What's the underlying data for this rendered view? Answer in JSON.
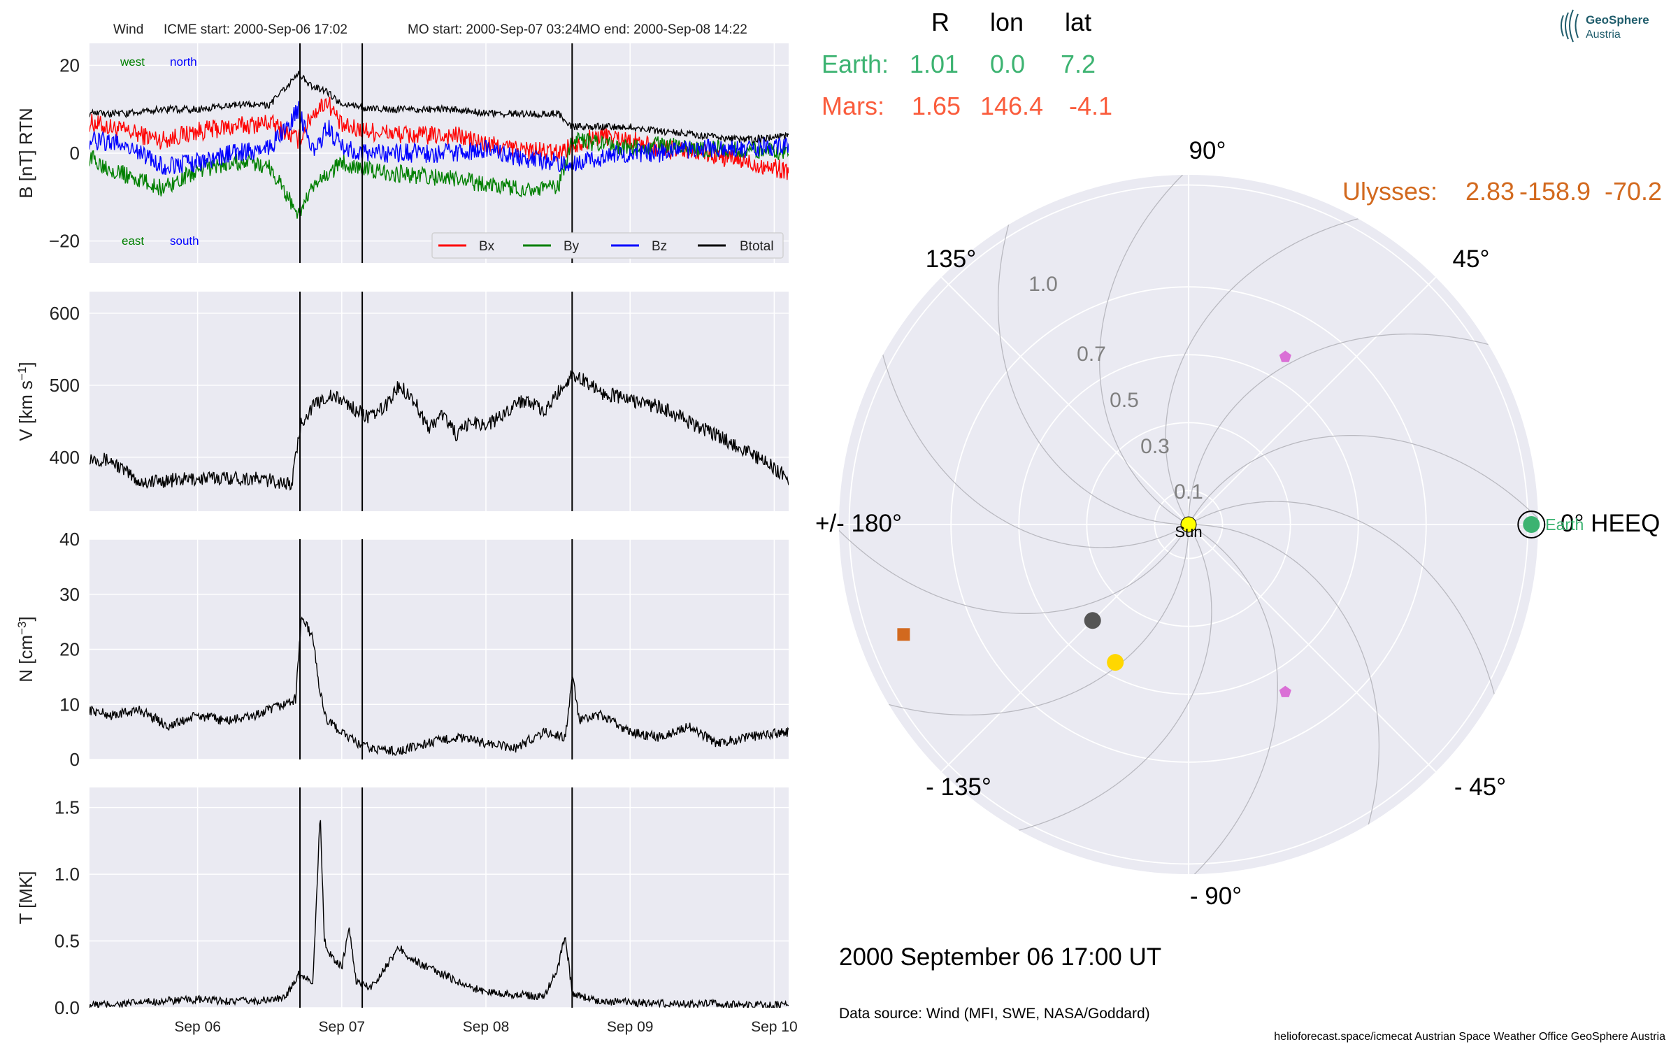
{
  "header": {
    "spacecraft": "Wind",
    "icme_start": "ICME start: 2000-Sep-06 17:02",
    "mo_start": "MO start: 2000-Sep-07 03:24",
    "mo_end": "MO end: 2000-Sep-08 14:22"
  },
  "colors": {
    "panel_bg": "#eaeaf2",
    "grid": "#ffffff",
    "bx": "#ff0000",
    "by": "#008000",
    "bz": "#0000ff",
    "btotal": "#000000",
    "earth": "#3cb371",
    "mars": "#fa5c3c",
    "ulysses": "#d2691e",
    "sun": "#ffff00",
    "pink": "#da70d6",
    "gold": "#ffd700",
    "gray_dot": "#555555"
  },
  "labels": {
    "west": "west",
    "north": "north",
    "east": "east",
    "south": "south"
  },
  "chart_data": [
    {
      "type": "line",
      "panel": "magnetic-field",
      "ylabel": "B [nT] RTN",
      "ylim": [
        -25,
        25
      ],
      "yticks": [
        -20,
        0,
        20
      ],
      "xlim_days": [
        5.25,
        10.1
      ],
      "legend": {
        "placement": "lower-right",
        "entries": [
          "Bx",
          "By",
          "Bz",
          "Btotal"
        ]
      },
      "series": [
        {
          "name": "Bx",
          "color": "#ff0000",
          "x": [
            5.25,
            5.5,
            5.75,
            6.0,
            6.25,
            6.5,
            6.7,
            6.8,
            6.9,
            7.0,
            7.2,
            7.5,
            7.8,
            8.0,
            8.2,
            8.5,
            8.6,
            8.8,
            9.0,
            9.2,
            9.5,
            9.8,
            10.1
          ],
          "y": [
            7,
            5,
            3,
            5,
            6,
            7,
            3,
            9,
            12,
            6,
            5,
            4,
            4,
            2,
            1,
            0,
            2,
            4,
            3,
            1,
            0,
            -2,
            -4
          ]
        },
        {
          "name": "By",
          "color": "#008000",
          "x": [
            5.25,
            5.5,
            5.75,
            6.0,
            6.25,
            6.5,
            6.7,
            6.8,
            6.9,
            7.0,
            7.2,
            7.5,
            7.8,
            8.0,
            8.2,
            8.5,
            8.6,
            8.8,
            9.0,
            9.2,
            9.5,
            9.8,
            10.1
          ],
          "y": [
            -1,
            -5,
            -8,
            -4,
            -2,
            -3,
            -14,
            -8,
            -5,
            -2,
            -4,
            -5,
            -6,
            -7,
            -8,
            -8,
            3,
            2,
            1,
            2,
            1,
            1,
            0
          ]
        },
        {
          "name": "Bz",
          "color": "#0000ff",
          "x": [
            5.25,
            5.5,
            5.75,
            6.0,
            6.25,
            6.5,
            6.7,
            6.8,
            6.9,
            7.0,
            7.2,
            7.5,
            7.8,
            8.0,
            8.2,
            8.5,
            8.6,
            8.8,
            9.0,
            9.2,
            9.5,
            9.8,
            10.1
          ],
          "y": [
            3,
            2,
            -3,
            -2,
            0,
            1,
            10,
            0,
            6,
            1,
            0,
            0,
            0,
            1,
            -1,
            -2,
            -2,
            -1,
            0,
            0,
            1,
            1,
            2
          ]
        },
        {
          "name": "Btotal",
          "color": "#000000",
          "x": [
            5.25,
            5.5,
            5.75,
            6.0,
            6.25,
            6.5,
            6.7,
            6.8,
            6.9,
            7.0,
            7.2,
            7.5,
            7.8,
            8.0,
            8.2,
            8.5,
            8.6,
            8.8,
            9.0,
            9.2,
            9.5,
            9.8,
            10.1
          ],
          "y": [
            9,
            9,
            10,
            10,
            11,
            11,
            18,
            15,
            14,
            11,
            10,
            10,
            10,
            9,
            9,
            9,
            6,
            6,
            6,
            5,
            4,
            3,
            4
          ]
        }
      ]
    },
    {
      "type": "line",
      "panel": "speed",
      "ylabel": "V [km s",
      "ylabel_sup": "−1",
      "ylabel_end": "]",
      "ylim": [
        325,
        630
      ],
      "yticks": [
        400,
        500,
        600
      ],
      "xlim_days": [
        5.25,
        10.1
      ],
      "series": [
        {
          "name": "",
          "color": "#000000",
          "x": [
            5.25,
            5.4,
            5.5,
            5.6,
            5.8,
            6.0,
            6.2,
            6.4,
            6.6,
            6.65,
            6.72,
            6.8,
            6.9,
            7.0,
            7.1,
            7.2,
            7.3,
            7.4,
            7.5,
            7.6,
            7.7,
            7.8,
            7.9,
            8.0,
            8.1,
            8.2,
            8.3,
            8.4,
            8.5,
            8.6,
            8.7,
            8.8,
            9.0,
            9.2,
            9.4,
            9.6,
            9.8,
            10.0,
            10.1
          ],
          "y": [
            400,
            395,
            380,
            365,
            368,
            370,
            372,
            370,
            365,
            360,
            450,
            470,
            485,
            480,
            465,
            455,
            470,
            500,
            480,
            440,
            460,
            430,
            450,
            445,
            455,
            475,
            480,
            460,
            490,
            515,
            505,
            490,
            480,
            470,
            450,
            430,
            410,
            385,
            370
          ]
        }
      ]
    },
    {
      "type": "line",
      "panel": "density",
      "ylabel": "N [cm",
      "ylabel_sup": "−3",
      "ylabel_end": "]",
      "ylim": [
        0,
        40
      ],
      "yticks": [
        0,
        10,
        20,
        30,
        40
      ],
      "xlim_days": [
        5.25,
        10.1
      ],
      "series": [
        {
          "name": "",
          "color": "#000000",
          "x": [
            5.25,
            5.4,
            5.6,
            5.8,
            6.0,
            6.2,
            6.4,
            6.6,
            6.68,
            6.72,
            6.8,
            6.85,
            6.9,
            7.0,
            7.1,
            7.2,
            7.4,
            7.6,
            7.8,
            8.0,
            8.2,
            8.4,
            8.55,
            8.6,
            8.65,
            8.8,
            9.0,
            9.2,
            9.4,
            9.6,
            9.8,
            10.1
          ],
          "y": [
            9,
            8,
            9,
            6,
            8,
            7,
            8,
            10,
            11,
            26,
            22,
            12,
            7,
            5,
            3,
            2,
            1.5,
            3,
            4,
            3,
            2,
            5,
            4,
            15,
            7,
            8,
            5,
            4,
            6,
            3,
            4,
            5
          ]
        }
      ]
    },
    {
      "type": "line",
      "panel": "temperature",
      "ylabel": "T [MK]",
      "ylim": [
        0,
        1.65
      ],
      "yticks": [
        0.0,
        0.5,
        1.0,
        1.5
      ],
      "yticklabels": [
        "0.0",
        "0.5",
        "1.0",
        "1.5"
      ],
      "xlim_days": [
        5.25,
        10.1
      ],
      "xticks_days": [
        6,
        7,
        8,
        9,
        10
      ],
      "xticklabels": [
        "Sep 06",
        "Sep 07",
        "Sep 08",
        "Sep 09",
        "Sep 10"
      ],
      "series": [
        {
          "name": "",
          "color": "#000000",
          "x": [
            5.25,
            5.5,
            5.75,
            6.0,
            6.2,
            6.4,
            6.6,
            6.7,
            6.8,
            6.85,
            6.88,
            6.92,
            7.0,
            7.05,
            7.1,
            7.2,
            7.3,
            7.4,
            7.5,
            7.6,
            7.7,
            7.8,
            7.9,
            8.0,
            8.2,
            8.4,
            8.5,
            8.55,
            8.6,
            8.8,
            9.0,
            9.2,
            9.5,
            9.8,
            10.1
          ],
          "y": [
            0.02,
            0.03,
            0.05,
            0.06,
            0.05,
            0.05,
            0.07,
            0.25,
            0.2,
            1.45,
            0.5,
            0.4,
            0.3,
            0.6,
            0.2,
            0.15,
            0.3,
            0.45,
            0.35,
            0.3,
            0.25,
            0.2,
            0.15,
            0.12,
            0.1,
            0.08,
            0.3,
            0.55,
            0.1,
            0.05,
            0.04,
            0.03,
            0.03,
            0.02,
            0.02
          ]
        }
      ]
    },
    {
      "type": "polar",
      "panel": "positions",
      "r_max": 1.03,
      "rticks": [
        0.1,
        0.3,
        0.5,
        0.7,
        1.0
      ],
      "rticklabels": [
        "0.1",
        "0.3",
        "0.5",
        "0.7",
        "1.0"
      ],
      "angle_labels": [
        {
          "deg": 0,
          "label": "0° HEEQ"
        },
        {
          "deg": 45,
          "label": "45°"
        },
        {
          "deg": 90,
          "label": "90°"
        },
        {
          "deg": 135,
          "label": "135°"
        },
        {
          "deg": 180,
          "label": "+/- 180°"
        },
        {
          "deg": -135,
          "label": "- 135°"
        },
        {
          "deg": -90,
          "label": "- 90°"
        },
        {
          "deg": -45,
          "label": "- 45°"
        }
      ],
      "table_header": [
        "R",
        "lon",
        "lat"
      ],
      "bodies": [
        {
          "name": "Earth",
          "R": "1.01",
          "lon": "0.0",
          "lat": "7.2",
          "r": 1.01,
          "theta": 0.0,
          "color": "#3cb371",
          "marker": "circle"
        },
        {
          "name": "Mars",
          "R": "1.65",
          "lon": "146.4",
          "lat": "-4.1",
          "color": "#fa5c3c"
        },
        {
          "name": "Ulysses",
          "R": "2.83",
          "lon": "-158.9",
          "lat": "-70.2",
          "color": "#d2691e"
        }
      ],
      "sun_label": "Sun",
      "extra_markers": [
        {
          "r": 0.9,
          "theta": -158.9,
          "color": "#d2691e",
          "marker": "square"
        },
        {
          "r": 0.57,
          "theta": 60,
          "color": "#da70d6",
          "marker": "pentagon"
        },
        {
          "r": 0.57,
          "theta": -60,
          "color": "#da70d6",
          "marker": "pentagon"
        },
        {
          "r": 0.4,
          "theta": -135,
          "color": "#555555",
          "marker": "circle"
        },
        {
          "r": 0.46,
          "theta": -118,
          "color": "#ffd700",
          "marker": "circle"
        }
      ]
    }
  ],
  "timestamp": "2000 September 06  17:00 UT",
  "data_source": "Data source: Wind (MFI, SWE, NASA/Goddard)",
  "footer": "helioforecast.space/icmecat   Austrian Space Weather Office   GeoSphere Austria",
  "logo": {
    "line1": "GeoSphere",
    "line2": "Austria"
  }
}
